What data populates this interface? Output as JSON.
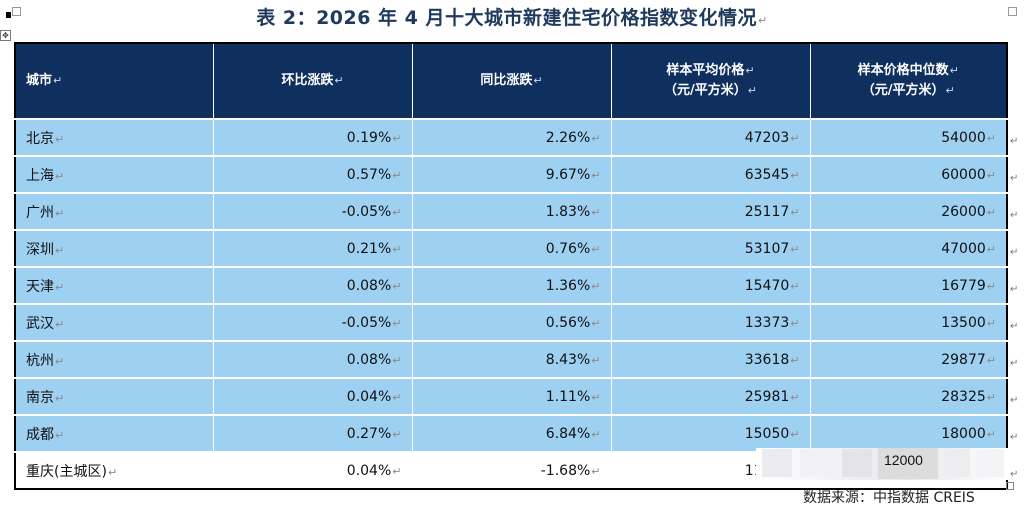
{
  "title": "表 2：2026 年 4 月十大城市新建住宅价格指数变化情况",
  "return_mark": "↵",
  "headers": {
    "city": "城市",
    "mom": "环比涨跌",
    "yoy": "同比涨跌",
    "avg_line1": "样本平均价格",
    "avg_line2": "（元/平方米）",
    "median_line1": "样本价格中位数",
    "median_line2": "（元/平方米）"
  },
  "rows": [
    {
      "city": "北京",
      "mom": "0.19%",
      "yoy": "2.26%",
      "avg": "47203",
      "median": "54000"
    },
    {
      "city": "上海",
      "mom": "0.57%",
      "yoy": "9.67%",
      "avg": "63545",
      "median": "60000"
    },
    {
      "city": "广州",
      "mom": "-0.05%",
      "yoy": "1.83%",
      "avg": "25117",
      "median": "26000"
    },
    {
      "city": "深圳",
      "mom": "0.21%",
      "yoy": "0.76%",
      "avg": "53107",
      "median": "47000"
    },
    {
      "city": "天津",
      "mom": "0.08%",
      "yoy": "1.36%",
      "avg": "15470",
      "median": "16779"
    },
    {
      "city": "武汉",
      "mom": "-0.05%",
      "yoy": "0.56%",
      "avg": "13373",
      "median": "13500"
    },
    {
      "city": "杭州",
      "mom": "0.08%",
      "yoy": "8.43%",
      "avg": "33618",
      "median": "29877"
    },
    {
      "city": "南京",
      "mom": "0.04%",
      "yoy": "1.11%",
      "avg": "25981",
      "median": "28325"
    },
    {
      "city": "成都",
      "mom": "0.27%",
      "yoy": "6.84%",
      "avg": "15050",
      "median": "18000"
    },
    {
      "city": "重庆(主城区)",
      "mom": "0.04%",
      "yoy": "-1.68%",
      "avg": "11376",
      "median": "12000"
    }
  ],
  "source_text": "数据来源：中指数据 CREIS",
  "move_handle_icon": "move-handle-icon"
}
